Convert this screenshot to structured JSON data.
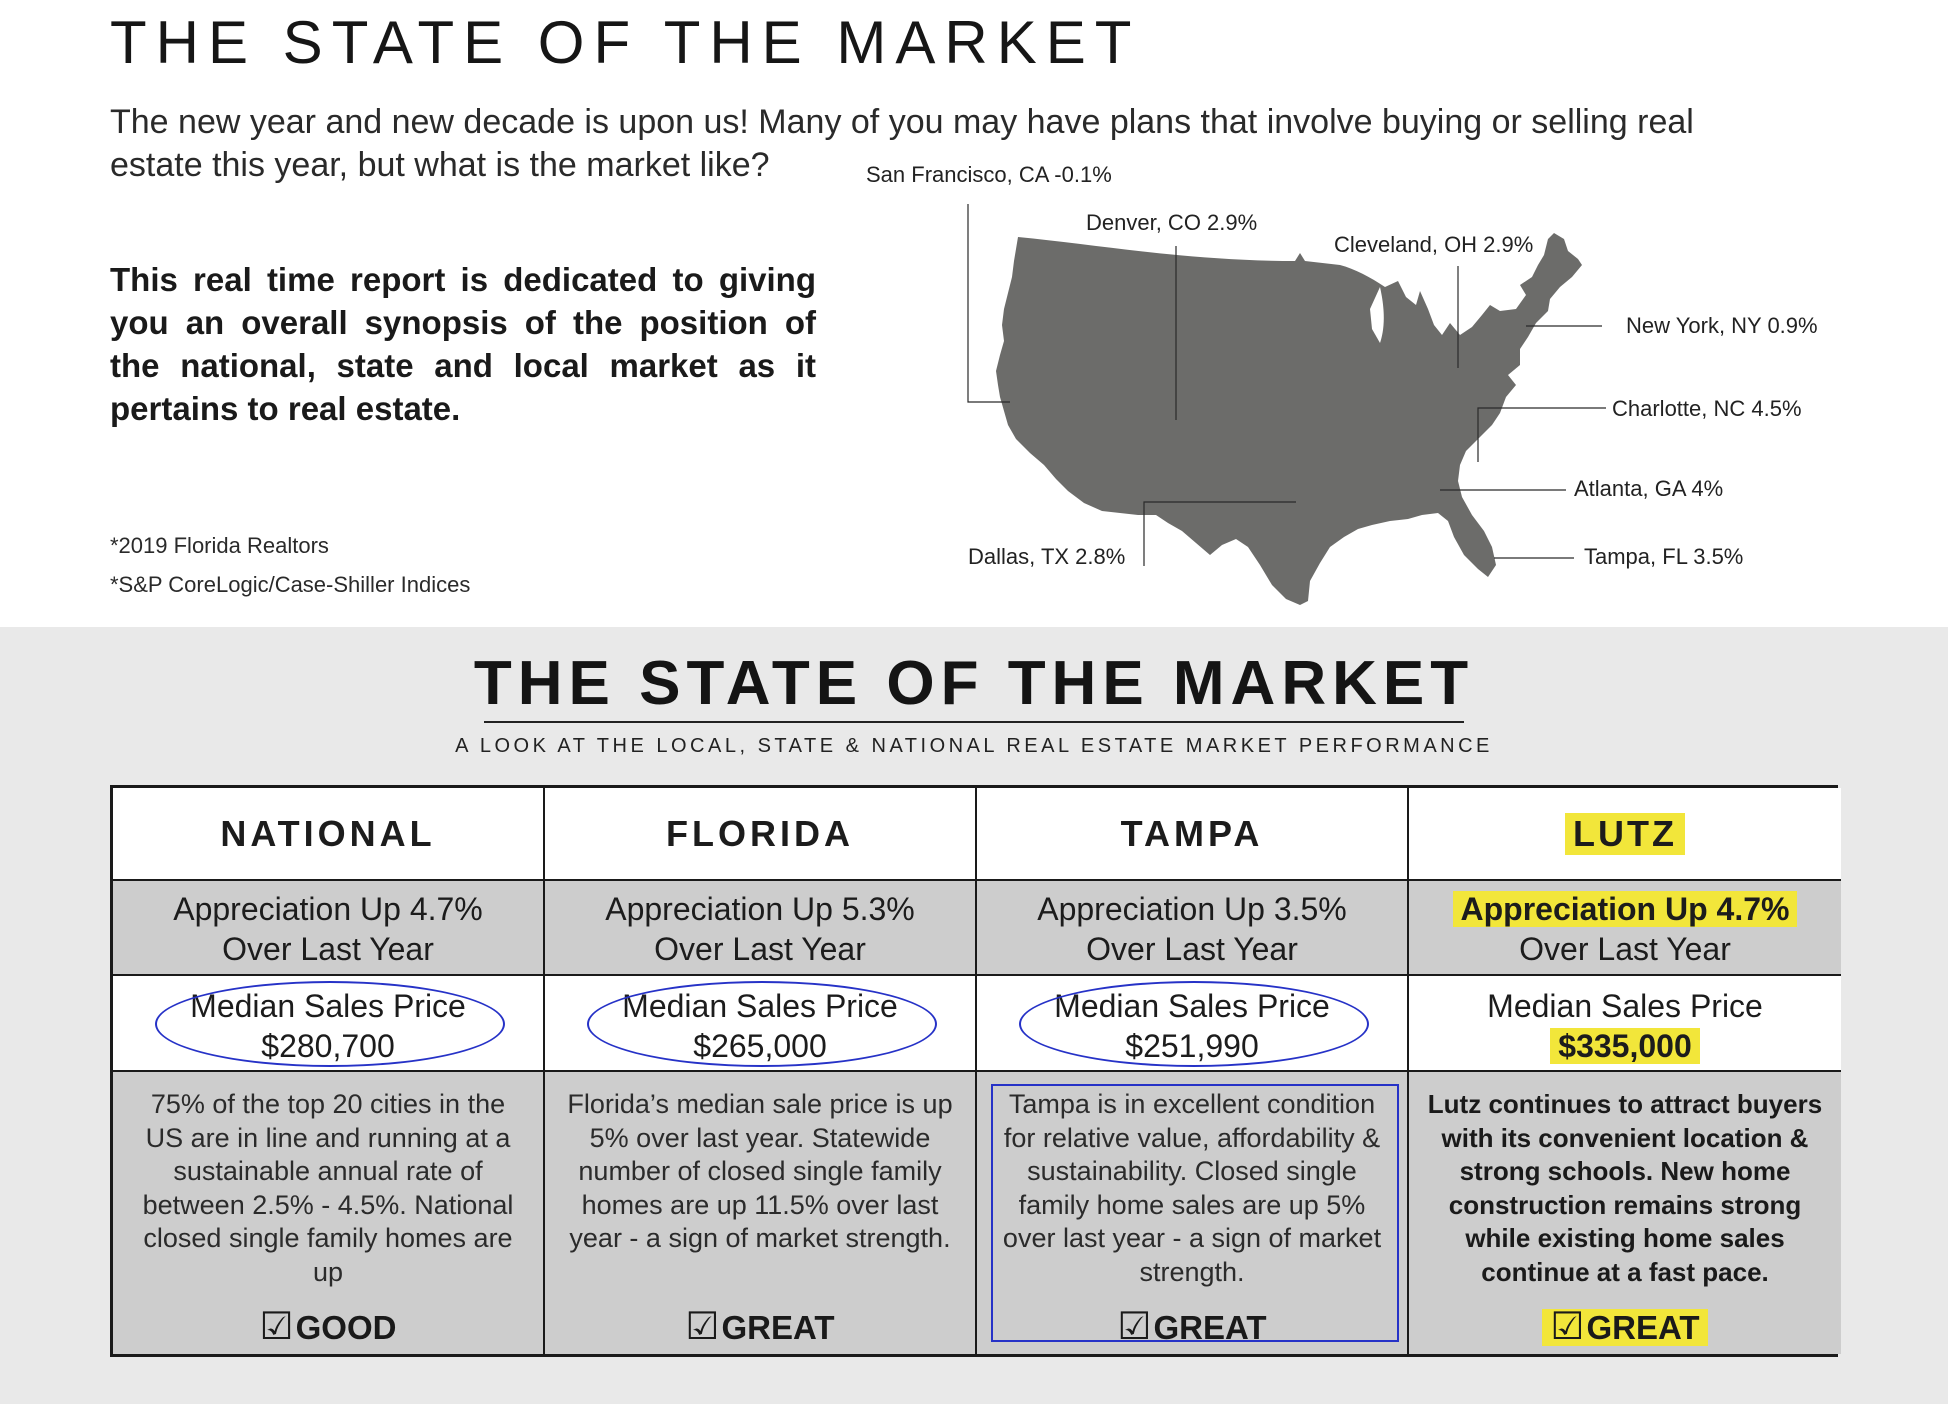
{
  "header": {
    "title": "THE STATE OF THE MARKET",
    "intro_line_1": "The new year and new decade is upon us! Many of you may have plans that involve buying or selling real",
    "intro_line_2": "estate this year, but what is the market like?",
    "synopsis": "This real time report is dedicated to giving you an overall synopsis of the position of the national, state and local market as it pertains to real estate.",
    "sources": [
      "*2019 Florida Realtors",
      "*S&P CoreLogic/Case-Shiller Indices"
    ]
  },
  "map": {
    "fill_color": "#6c6c6a",
    "cities": [
      {
        "label": "San Francisco, CA -0.1%"
      },
      {
        "label": "Denver, CO 2.9%"
      },
      {
        "label": "Cleveland, OH 2.9%"
      },
      {
        "label": "New York, NY 0.9%"
      },
      {
        "label": "Charlotte, NC 4.5%"
      },
      {
        "label": "Atlanta, GA 4%"
      },
      {
        "label": "Dallas, TX 2.8%"
      },
      {
        "label": "Tampa, FL 3.5%"
      }
    ]
  },
  "report": {
    "title": "THE STATE OF THE MARKET",
    "subtitle": "A LOOK AT THE LOCAL, STATE & NATIONAL REAL ESTATE MARKET PERFORMANCE",
    "highlight_color": "#f2e63a",
    "circle_color": "#2632c7",
    "columns": [
      {
        "heading": "NATIONAL",
        "appreciation": "Appreciation Up 4.7%",
        "appreciation_sub": "Over Last Year",
        "median_label": "Median Sales Price",
        "median_value": "$280,700",
        "description": "75% of the top 20 cities in the US are in line and running at a sustainable annual rate of between 2.5% - 4.5%. National closed single family homes are up",
        "rating": "GOOD"
      },
      {
        "heading": "FLORIDA",
        "appreciation": "Appreciation Up 5.3%",
        "appreciation_sub": "Over Last Year",
        "median_label": "Median Sales Price",
        "median_value": "$265,000",
        "description": "Florida’s median sale price is up 5% over last year.  Statewide number of closed single family homes are up 11.5% over last year - a sign of market strength.",
        "rating": "GREAT"
      },
      {
        "heading": "TAMPA",
        "appreciation": "Appreciation Up 3.5%",
        "appreciation_sub": "Over Last Year",
        "median_label": "Median Sales Price",
        "median_value": "$251,990",
        "description": "Tampa is in excellent condition for relative value, affordability & sustainability. Closed single family home sales are up 5% over last year - a sign of market strength.",
        "rating": "GREAT"
      },
      {
        "heading": "LUTZ",
        "appreciation": "Appreciation Up 4.7%",
        "appreciation_sub": "Over Last Year",
        "median_label": "Median Sales Price",
        "median_value": "$335,000",
        "description": "Lutz continues to attract buyers with its convenient location & strong schools.  New home construction remains strong while existing home sales continue at a fast pace.",
        "rating": "GREAT"
      }
    ]
  }
}
